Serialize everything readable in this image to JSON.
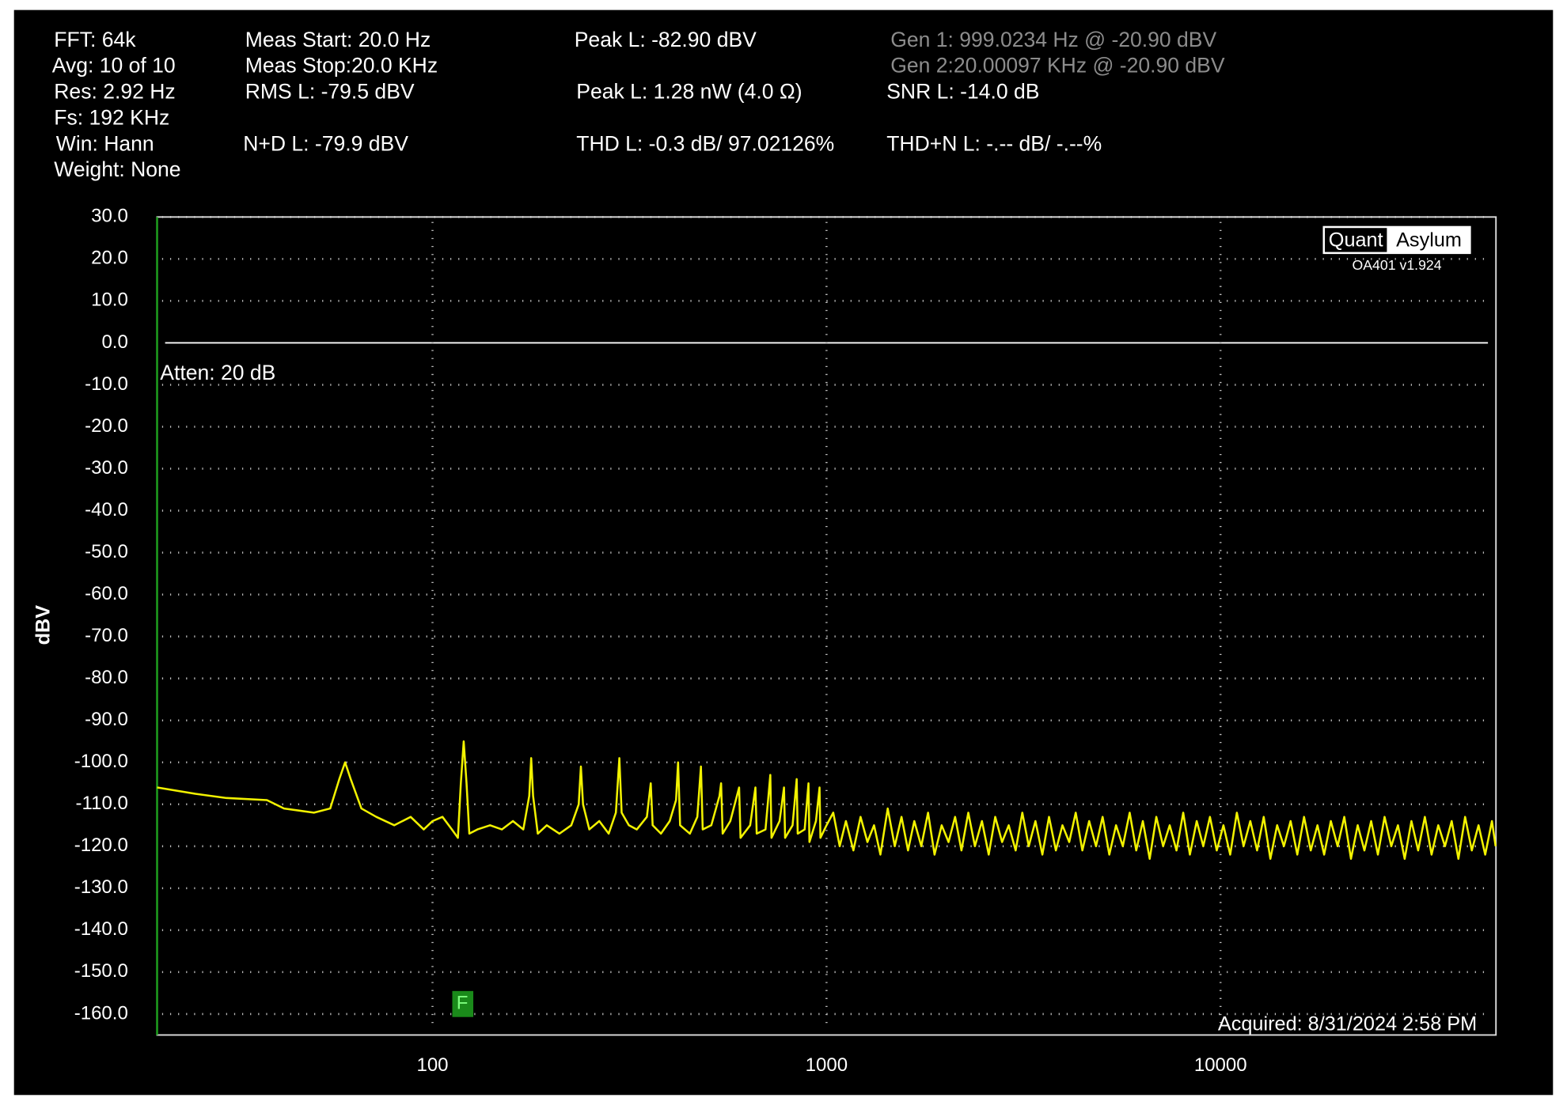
{
  "readouts": [
    "FFT: 64k",
    "Avg: 10 of 10",
    "Res: 2.92 Hz",
    "Fs: 192 KHz",
    "Win: Hann",
    "Weight: None",
    "Meas Start: 20.0 Hz",
    "Meas Stop:20.0 KHz",
    "RMS L: -79.5 dBV",
    "N+D L: -79.9 dBV",
    "Peak L: -82.90 dBV",
    "Peak L: 1.28 nW (4.0 Ω)",
    "THD L: -0.3 dB/ 97.02126%",
    "Gen 1: 999.0234 Hz @ -20.90  dBV",
    "Gen 2:20.00097 KHz @ -20.90  dBV",
    "SNR L: -14.0 dB",
    "THD+N L: -.-- dB/ -.--%"
  ],
  "logo": {
    "left": "Quant",
    "right": "Asylum",
    "version": "OA401 v1.924"
  },
  "chart_data": {
    "type": "line",
    "ylabel": "dBV",
    "logx": true,
    "grid": true,
    "color": "#f2f200",
    "annotations": {
      "atten": "Atten: 20 dB",
      "acquired": "Acquired: 8/31/2024  2:58 PM",
      "marker": "F"
    },
    "xlim": [
      20,
      50000
    ],
    "xticks": [
      100,
      1000,
      10000
    ],
    "ylim": [
      -165,
      30
    ],
    "yticks": [
      {
        "value": 30,
        "label": "30.0"
      },
      {
        "value": 20,
        "label": "20.0"
      },
      {
        "value": 10,
        "label": "10.0"
      },
      {
        "value": 0,
        "label": "0.0"
      },
      {
        "value": -10,
        "label": "-10.0"
      },
      {
        "value": -20,
        "label": "-20.0"
      },
      {
        "value": -30,
        "label": "-30.0"
      },
      {
        "value": -40,
        "label": "-40.0"
      },
      {
        "value": -50,
        "label": "-50.0"
      },
      {
        "value": -60,
        "label": "-60.0"
      },
      {
        "value": -70,
        "label": "-70.0"
      },
      {
        "value": -80,
        "label": "-80.0"
      },
      {
        "value": -90,
        "label": "-90.0"
      },
      {
        "value": -100,
        "label": "-100.0"
      },
      {
        "value": -110,
        "label": "-110.0"
      },
      {
        "value": -120,
        "label": "-120.0"
      },
      {
        "value": -130,
        "label": "-130.0"
      },
      {
        "value": -140,
        "label": "-140.0"
      },
      {
        "value": -150,
        "label": "-150.0"
      },
      {
        "value": -160,
        "label": "-160.0"
      }
    ],
    "x": [
      20,
      25,
      30,
      38,
      42,
      50,
      55,
      58,
      60,
      62,
      66,
      72,
      80,
      88,
      95,
      100,
      106,
      112,
      116,
      118,
      120,
      122,
      124,
      130,
      140,
      150,
      160,
      170,
      176,
      178,
      180,
      185,
      195,
      210,
      225,
      235,
      238,
      241,
      250,
      265,
      280,
      292,
      298,
      302,
      315,
      330,
      350,
      358,
      362,
      380,
      400,
      415,
      420,
      425,
      450,
      470,
      480,
      485,
      510,
      535,
      540,
      545,
      570,
      600,
      605,
      640,
      660,
      665,
      700,
      720,
      725,
      760,
      780,
      785,
      820,
      840,
      845,
      880,
      900,
      905,
      940,
      960,
      965,
      1000,
      1040,
      1080,
      1120,
      1170,
      1220,
      1270,
      1320,
      1370,
      1430,
      1490,
      1550,
      1610,
      1670,
      1740,
      1810,
      1880,
      1960,
      2040,
      2120,
      2200,
      2290,
      2380,
      2480,
      2580,
      2680,
      2790,
      2900,
      3020,
      3140,
      3260,
      3390,
      3530,
      3670,
      3820,
      3970,
      4130,
      4290,
      4460,
      4640,
      4830,
      5020,
      5220,
      5430,
      5650,
      5880,
      6110,
      6350,
      6610,
      6870,
      7150,
      7430,
      7730,
      8040,
      8360,
      8700,
      9040,
      9400,
      9780,
      10170,
      10580,
      11000,
      11440,
      11900,
      12380,
      12870,
      13380,
      13920,
      14480,
      15060,
      15660,
      16290,
      16940,
      17620,
      18320,
      19050,
      19820,
      20610,
      21430,
      22290,
      23180,
      24110,
      25080,
      26080,
      27120,
      28200,
      29330,
      30510,
      31730,
      33000,
      34320,
      35690,
      37120,
      38600,
      40150,
      41750,
      43420,
      45160,
      46960,
      48840,
      49900
    ],
    "values": [
      -106,
      -107.5,
      -108.5,
      -109,
      -111,
      -112,
      -111,
      -104,
      -100,
      -104,
      -111,
      -113,
      -115,
      -113,
      -116,
      -114,
      -113,
      -116,
      -118,
      -105,
      -95,
      -105,
      -117,
      -116,
      -115,
      -116,
      -114,
      -116,
      -108,
      -99,
      -108,
      -117,
      -115,
      -117,
      -115,
      -110,
      -101,
      -110,
      -116,
      -114,
      -117,
      -112,
      -99,
      -112,
      -115,
      -116,
      -113,
      -105,
      -115,
      -117,
      -114,
      -109,
      -100,
      -115,
      -117,
      -113,
      -101,
      -116,
      -115,
      -108,
      -105,
      -117,
      -114,
      -106,
      -118,
      -115,
      -106,
      -117,
      -116,
      -103,
      -118,
      -114,
      -106,
      -118,
      -115,
      -104,
      -117,
      -116,
      -105,
      -119,
      -114,
      -106,
      -118,
      -115,
      -112,
      -120,
      -114,
      -121,
      -113,
      -119,
      -115,
      -122,
      -111,
      -120,
      -113,
      -121,
      -114,
      -120,
      -112,
      -122,
      -115,
      -119,
      -113,
      -121,
      -112,
      -120,
      -114,
      -122,
      -113,
      -119,
      -115,
      -121,
      -112,
      -120,
      -114,
      -122,
      -113,
      -121,
      -115,
      -119,
      -112,
      -121,
      -114,
      -120,
      -113,
      -122,
      -115,
      -120,
      -112,
      -121,
      -114,
      -123,
      -113,
      -120,
      -115,
      -121,
      -112,
      -122,
      -114,
      -120,
      -113,
      -121,
      -115,
      -122,
      -112,
      -120,
      -114,
      -121,
      -113,
      -123,
      -115,
      -120,
      -114,
      -122,
      -113,
      -121,
      -115,
      -122,
      -114,
      -120,
      -113,
      -123,
      -115,
      -121,
      -114,
      -122,
      -113,
      -120,
      -115,
      -123,
      -114,
      -121,
      -113,
      -122,
      -115,
      -120,
      -114,
      -123,
      -113,
      -121,
      -115,
      -122,
      -114,
      -120
    ]
  }
}
